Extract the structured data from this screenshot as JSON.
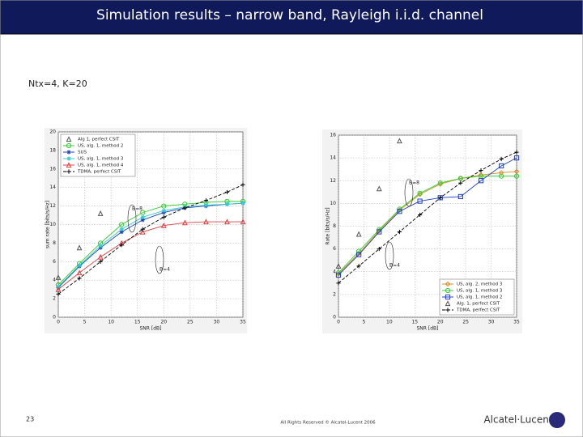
{
  "header": {
    "title": "Simulation results – narrow band, Rayleigh i.i.d. channel"
  },
  "subtitle": "Ntx=4, K=20",
  "footer": {
    "page": "23",
    "copyright": "All Rights Reserved © Alcatel-Lucent 2006",
    "logo": "Alcatel·Lucent"
  },
  "chart_data": [
    {
      "type": "line",
      "xlabel": "SNR [dB]",
      "ylabel": "sum rate [bits/s/Hz]",
      "x": [
        0,
        4,
        8,
        12,
        16,
        20,
        24,
        28,
        32,
        35
      ],
      "xlim": [
        0,
        35
      ],
      "xticks": [
        0,
        5,
        10,
        15,
        20,
        25,
        30,
        35
      ],
      "ylim": [
        0,
        20
      ],
      "yticks": [
        0,
        2,
        4,
        6,
        8,
        10,
        12,
        14,
        16,
        18,
        20
      ],
      "grid": true,
      "legend": "upper left",
      "annotations": [
        "B=8",
        "B=4"
      ],
      "series": [
        {
          "name": "Alg 1, perfect CSIT",
          "color": "#555555",
          "marker": "triangle",
          "line": false,
          "values": [
            4.3,
            7.5,
            11.2,
            null,
            null,
            null,
            null,
            null,
            null,
            null
          ]
        },
        {
          "name": "US, alg. 1, method 2",
          "color": "#33cc33",
          "marker": "circle",
          "values": [
            3.5,
            5.8,
            8,
            10,
            11.3,
            12,
            12.2,
            12.4,
            12.5,
            12.5
          ]
        },
        {
          "name": "SUS",
          "color": "#1f3fbf",
          "marker": "star",
          "values": [
            3.2,
            5.5,
            7.5,
            9.2,
            10.5,
            11.3,
            11.8,
            12,
            12.2,
            12.3
          ]
        },
        {
          "name": "US, alg. 1, method 3",
          "color": "#33cccc",
          "marker": "star",
          "values": [
            3.3,
            5.6,
            7.7,
            9.5,
            10.8,
            11.5,
            11.9,
            12.1,
            12.2,
            12.3
          ]
        },
        {
          "name": "US, alg. 1, method 4",
          "color": "#e04040",
          "marker": "triangle",
          "values": [
            3,
            4.8,
            6.5,
            8,
            9.2,
            9.9,
            10.2,
            10.3,
            10.3,
            10.3
          ]
        },
        {
          "name": "TDMA, perfect CSIT",
          "color": "#000000",
          "marker": "plus",
          "dashed": true,
          "values": [
            2.5,
            4.2,
            6,
            7.8,
            9.5,
            10.8,
            11.8,
            12.6,
            13.5,
            14.3
          ]
        }
      ]
    },
    {
      "type": "line",
      "xlabel": "SNR [dB]",
      "ylabel": "Rate [bits/s/Hz]",
      "x": [
        0,
        4,
        8,
        12,
        16,
        20,
        24,
        28,
        32,
        35
      ],
      "xlim": [
        0,
        35
      ],
      "xticks": [
        0,
        5,
        10,
        15,
        20,
        25,
        30,
        35
      ],
      "ylim": [
        0,
        16
      ],
      "yticks": [
        0,
        2,
        4,
        6,
        8,
        10,
        12,
        14,
        16
      ],
      "grid": true,
      "legend": "lower right",
      "annotations": [
        "B=8",
        "B=4"
      ],
      "series": [
        {
          "name": "US, alg. 2, method 3",
          "color": "#e08a20",
          "marker": "diamond",
          "values": [
            3.8,
            5.6,
            7.6,
            9.4,
            10.8,
            11.7,
            12.2,
            12.5,
            12.7,
            12.8
          ]
        },
        {
          "name": "US, alg. 1, method 3",
          "color": "#33cc33",
          "marker": "circle",
          "values": [
            3.9,
            5.8,
            7.7,
            9.5,
            10.9,
            11.8,
            12.2,
            12.4,
            12.4,
            12.4
          ]
        },
        {
          "name": "US, alg. 1, method 2",
          "color": "#1f3fbf",
          "marker": "square",
          "values": [
            3.7,
            5.5,
            7.5,
            9.3,
            10.2,
            10.5,
            10.6,
            12,
            13.3,
            14
          ]
        },
        {
          "name": "Alg. 1, perfect CSIT",
          "color": "#555555",
          "marker": "triangle",
          "line": false,
          "values": [
            4.5,
            7.3,
            11.3,
            15.5,
            null,
            null,
            null,
            null,
            null,
            null
          ]
        },
        {
          "name": "TDMA, perfect CSIT",
          "color": "#000000",
          "marker": "plus",
          "dashed": true,
          "values": [
            3,
            4.5,
            6,
            7.5,
            9,
            10.5,
            11.8,
            12.9,
            13.9,
            14.5
          ]
        }
      ]
    }
  ]
}
